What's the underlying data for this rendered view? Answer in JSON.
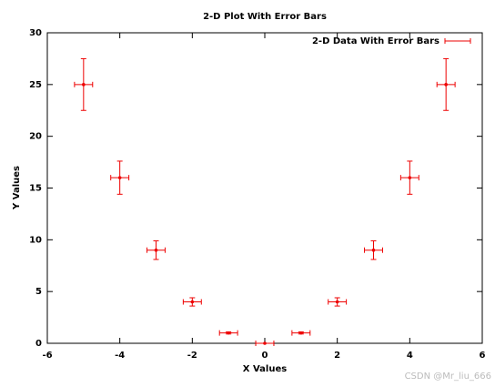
{
  "chart_data": {
    "type": "errorbar",
    "title": "2-D Plot With Error Bars",
    "x_label": "X Values",
    "y_label": "Y Values",
    "series": [
      {
        "name": "2-D Data With Error Bars",
        "color": "#ee0000",
        "x": [
          -5,
          -4,
          -3,
          -2,
          -1,
          0,
          1,
          2,
          3,
          4,
          5
        ],
        "values": [
          25,
          16,
          9,
          4,
          1,
          0,
          1,
          4,
          9,
          16,
          25
        ],
        "xerr": [
          0.25,
          0.25,
          0.25,
          0.25,
          0.25,
          0.25,
          0.25,
          0.25,
          0.25,
          0.25,
          0.25
        ],
        "yerr": [
          2.5,
          1.6,
          0.9,
          0.4,
          0.1,
          0,
          0.1,
          0.4,
          0.9,
          1.6,
          2.5
        ]
      }
    ],
    "xlim": [
      -6,
      6
    ],
    "xticks": [
      -6,
      -4,
      -2,
      0,
      2,
      4,
      6
    ],
    "ylim": [
      0,
      30
    ],
    "yticks": [
      0,
      5,
      10,
      15,
      20,
      25,
      30
    ],
    "grid": false,
    "legend": "top-right",
    "watermark": "CSDN @Mr_liu_666"
  }
}
